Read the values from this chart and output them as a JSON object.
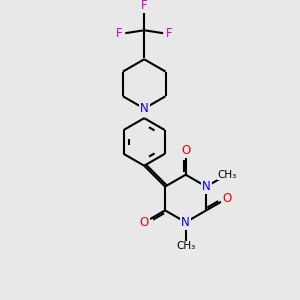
{
  "background_color": "#e8e8e8",
  "bond_color": "#000000",
  "N_color": "#0000ee",
  "O_color": "#ee0000",
  "F_color": "#cc00cc",
  "bond_lw": 1.5,
  "font_size": 8.5,
  "xlim": [
    0,
    10
  ],
  "ylim": [
    0,
    10
  ]
}
